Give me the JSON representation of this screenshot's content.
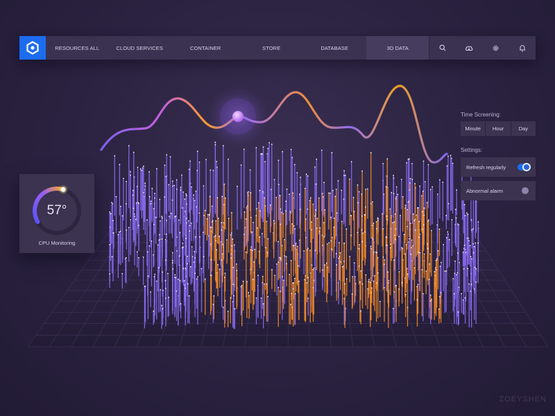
{
  "nav": {
    "items": [
      {
        "label": "RESOURCES ALL",
        "active": false
      },
      {
        "label": "CLOUD SERVICES",
        "active": false
      },
      {
        "label": "CONTAINER",
        "active": false
      },
      {
        "label": "STORE",
        "active": false
      },
      {
        "label": "DATABASE",
        "active": false
      },
      {
        "label": "3D DATA",
        "active": true
      }
    ],
    "icons": [
      "search-icon",
      "cloud-icon",
      "gear-icon",
      "bell-icon"
    ]
  },
  "gauge": {
    "value": "57°",
    "label": "CPU Monitoring",
    "level": 0.57
  },
  "time_screening": {
    "title": "Time Screening:",
    "options": [
      "Minute",
      "Hour",
      "Day"
    ]
  },
  "settings": {
    "title": "Settings:",
    "refresh_label": "Refresh regularly",
    "refresh_on": true,
    "alarm_label": "Abnormal alarm",
    "alarm_on": false
  },
  "colors": {
    "accent": "#1d6cf0",
    "purple": "#8a6cf2",
    "orange": "#f08a2a",
    "panel": "#3b3350"
  },
  "watermark": "ZOEYSHEN"
}
